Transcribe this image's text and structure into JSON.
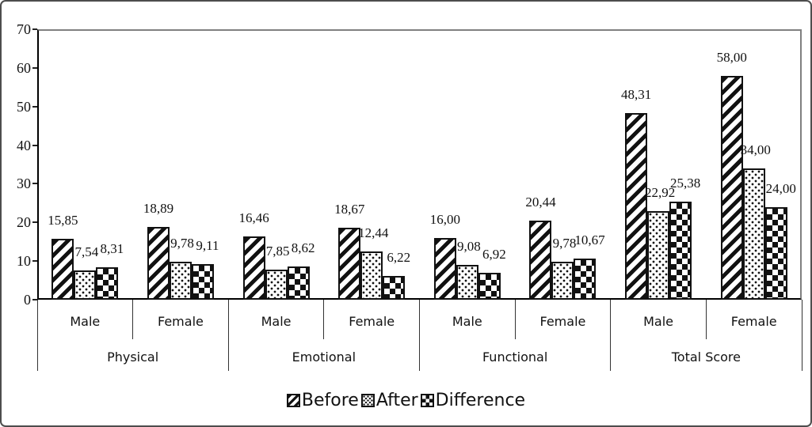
{
  "chart_data": {
    "type": "bar",
    "title": "",
    "xlabel": "",
    "ylabel": "",
    "ylim": [
      0,
      70
    ],
    "ytick_labels": [
      "0",
      "10",
      "20",
      "30",
      "40",
      "50",
      "60",
      "70"
    ],
    "grid": false,
    "legend_position": "bottom-center",
    "decimal_separator": ",",
    "series": [
      {
        "name": "Before",
        "pattern": "diagonal-stripes-icon"
      },
      {
        "name": "After",
        "pattern": "dots-icon"
      },
      {
        "name": "Difference",
        "pattern": "diamonds-icon"
      }
    ],
    "groups": [
      {
        "category": "Physical",
        "subgroups": [
          {
            "label": "Male",
            "values": [
              15.85,
              7.54,
              8.31
            ],
            "value_labels": [
              "15,85",
              "7,54",
              "8,31"
            ]
          },
          {
            "label": "Female",
            "values": [
              18.89,
              9.78,
              9.11
            ],
            "value_labels": [
              "18,89",
              "9,78",
              "9,11"
            ]
          }
        ]
      },
      {
        "category": "Emotional",
        "subgroups": [
          {
            "label": "Male",
            "values": [
              16.46,
              7.85,
              8.62
            ],
            "value_labels": [
              "16,46",
              "7,85",
              "8,62"
            ]
          },
          {
            "label": "Female",
            "values": [
              18.67,
              12.44,
              6.22
            ],
            "value_labels": [
              "18,67",
              "12,44",
              "6,22"
            ]
          }
        ]
      },
      {
        "category": "Functional",
        "subgroups": [
          {
            "label": "Male",
            "values": [
              16.0,
              9.08,
              6.92
            ],
            "value_labels": [
              "16,00",
              "9,08",
              "6,92"
            ]
          },
          {
            "label": "Female",
            "values": [
              20.44,
              9.78,
              10.67
            ],
            "value_labels": [
              "20,44",
              "9,78",
              "10,67"
            ]
          }
        ]
      },
      {
        "category": "Total Score",
        "subgroups": [
          {
            "label": "Male",
            "values": [
              48.31,
              22.92,
              25.38
            ],
            "value_labels": [
              "48,31",
              "22,92",
              "25,38"
            ]
          },
          {
            "label": "Female",
            "values": [
              58.0,
              34.0,
              24.0
            ],
            "value_labels": [
              "58,00",
              "34,00",
              "24,00"
            ]
          }
        ]
      }
    ],
    "colors": {
      "foreground": "#111111",
      "background": "#ffffff",
      "frame_border": "#4d4d4d",
      "plot_border_gray": "#808080"
    }
  }
}
